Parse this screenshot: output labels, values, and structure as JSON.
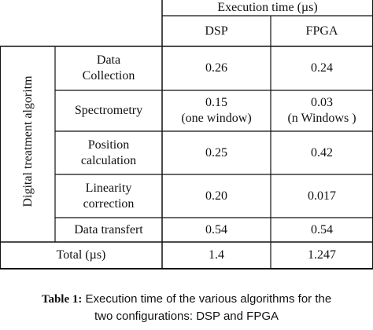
{
  "table": {
    "header_top": "Execution time (µs)",
    "col_headers": [
      "DSP",
      "FPGA"
    ],
    "row_group_label": "Digital treatment algoritm",
    "rows": [
      {
        "label": [
          "Data",
          "Collection"
        ],
        "dsp": [
          "0.26"
        ],
        "fpga": [
          "0.24"
        ]
      },
      {
        "label": [
          "Spectrometry"
        ],
        "dsp": [
          "0.15",
          "(one window)"
        ],
        "fpga": [
          "0.03",
          "(n Windows )"
        ]
      },
      {
        "label": [
          "Position",
          "calculation"
        ],
        "dsp": [
          "0.25"
        ],
        "fpga": [
          "0.42"
        ]
      },
      {
        "label": [
          "Linearity",
          "correction"
        ],
        "dsp": [
          "0.20"
        ],
        "fpga": [
          "0.017"
        ]
      },
      {
        "label": [
          "Data transfert"
        ],
        "dsp": [
          "0.54"
        ],
        "fpga": [
          "0.54"
        ]
      }
    ],
    "total": {
      "label": "Total (µs)",
      "dsp": "1.4",
      "fpga": "1.247"
    }
  },
  "caption": {
    "label": "Table 1:",
    "line1": "Execution time of the various algorithms for the",
    "line2": "two configurations: DSP and FPGA"
  }
}
